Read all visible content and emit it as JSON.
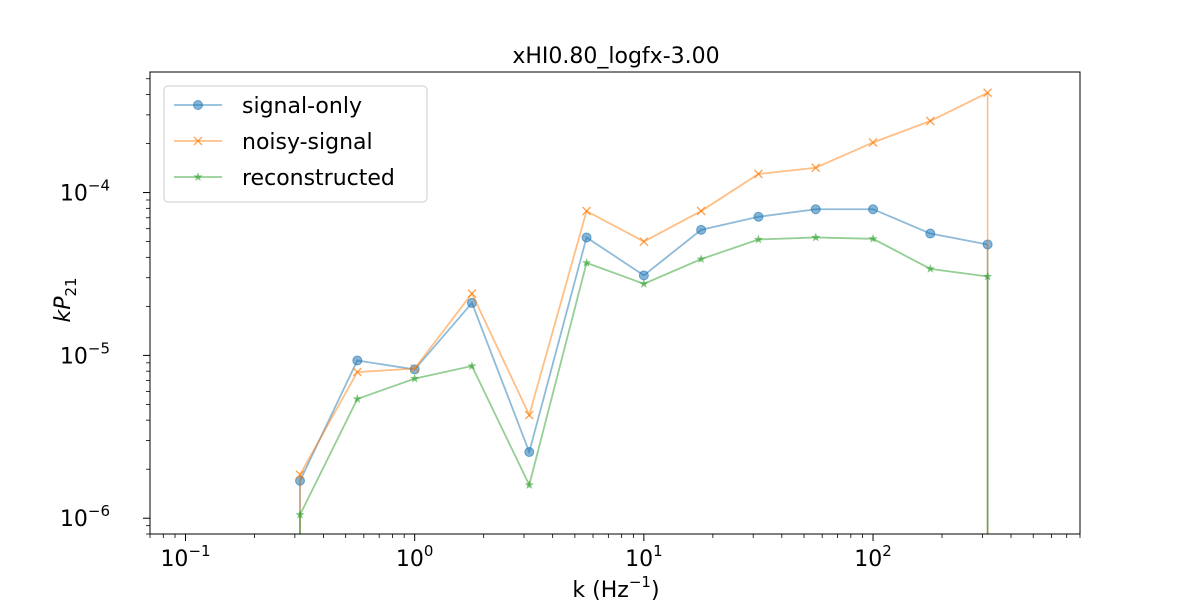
{
  "chart_data": {
    "type": "line",
    "title": "xHI0.80_logfx-3.00",
    "xlabel": "k (Hz",
    "xlabel_sup": "−1",
    "xlabel_end": ")",
    "ylabel_main": "kP",
    "ylabel_sub": "21",
    "xscale": "log",
    "yscale": "log",
    "xlim": [
      0.07,
      800
    ],
    "ylim": [
      8e-07,
      0.00055
    ],
    "grid": false,
    "legend_position": "top-left",
    "x_ticks": [
      {
        "value": 0.1,
        "base": "10",
        "exp": "−1"
      },
      {
        "value": 1,
        "base": "10",
        "exp": "0"
      },
      {
        "value": 10,
        "base": "10",
        "exp": "1"
      },
      {
        "value": 100,
        "base": "10",
        "exp": "2"
      }
    ],
    "y_ticks": [
      {
        "value": 1e-06,
        "base": "10",
        "exp": "−6"
      },
      {
        "value": 1e-05,
        "base": "10",
        "exp": "−5"
      },
      {
        "value": 0.0001,
        "base": "10",
        "exp": "−4"
      }
    ],
    "x": [
      0.316,
      0.562,
      1.0,
      1.778,
      3.162,
      5.623,
      10.0,
      17.78,
      31.62,
      56.23,
      100.0,
      177.8,
      316.2
    ],
    "series": [
      {
        "name": "signal-only",
        "color": "#1f77b4",
        "marker": "circle",
        "values": [
          1.7e-06,
          9.3e-06,
          8.2e-06,
          2.1e-05,
          2.55e-06,
          5.3e-05,
          3.1e-05,
          5.9e-05,
          7.1e-05,
          7.9e-05,
          7.9e-05,
          5.6e-05,
          4.8e-05
        ],
        "drop_to_zero_at": [
          0.316,
          316.2
        ]
      },
      {
        "name": "noisy-signal",
        "color": "#ff7f0e",
        "marker": "x",
        "values": [
          1.85e-06,
          7.9e-06,
          8.3e-06,
          2.4e-05,
          4.3e-06,
          7.7e-05,
          5e-05,
          7.7e-05,
          0.00013,
          0.000142,
          0.000203,
          0.000275,
          0.00041
        ],
        "drop_to_zero_at": [
          0.316,
          316.2
        ]
      },
      {
        "name": "reconstructed",
        "color": "#2ca02c",
        "marker": "star",
        "values": [
          1.05e-06,
          5.4e-06,
          7.2e-06,
          8.6e-06,
          1.6e-06,
          3.7e-05,
          2.75e-05,
          3.9e-05,
          5.15e-05,
          5.3e-05,
          5.2e-05,
          3.4e-05,
          3.05e-05
        ],
        "drop_to_zero_at": [
          0.316,
          316.2
        ]
      }
    ]
  }
}
